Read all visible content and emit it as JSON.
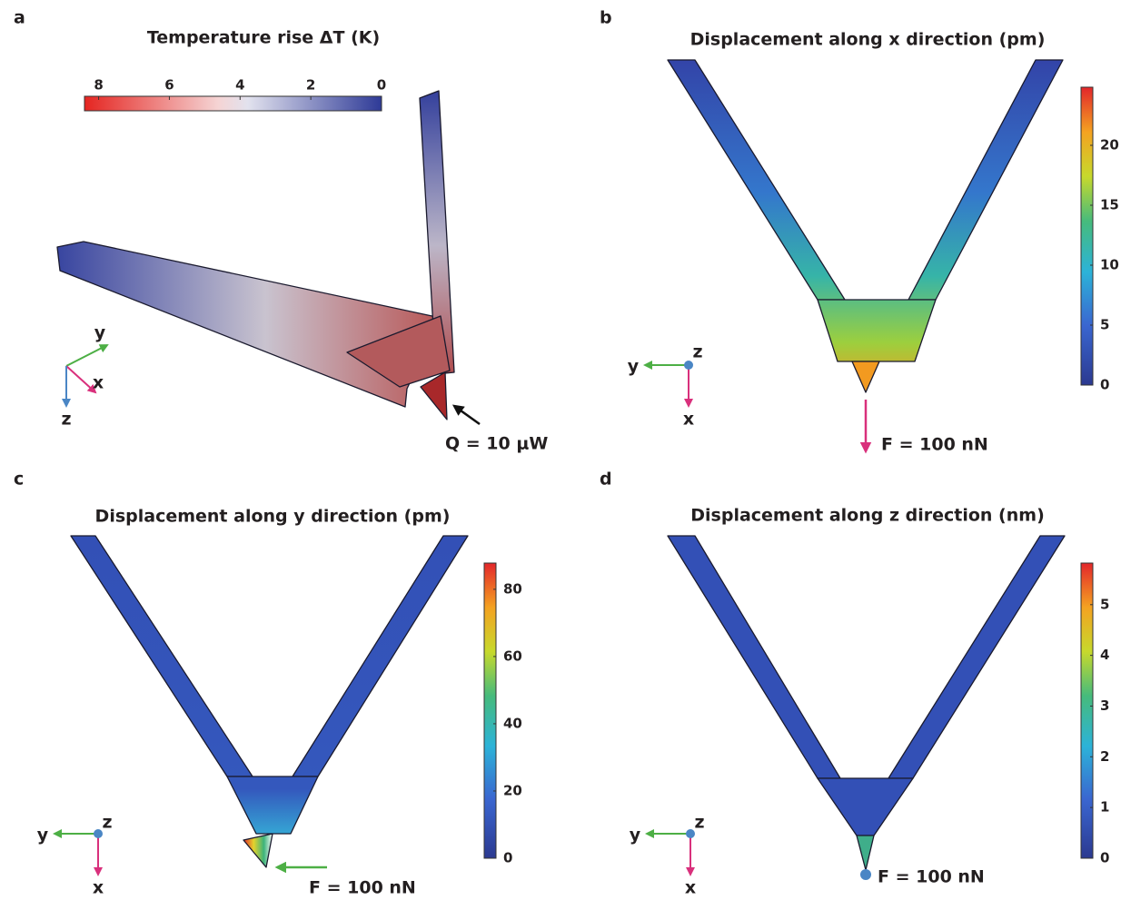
{
  "panels": [
    {
      "label": "a",
      "title": "Temperature rise ΔT (K)",
      "colorbar": {
        "orientation": "horizontal",
        "lim": [
          8.4,
          0
        ],
        "ticks": [
          8,
          6,
          4,
          2,
          0
        ]
      },
      "axes": [
        "y",
        "x",
        "z"
      ],
      "annotation": "Q = 10 μW"
    },
    {
      "label": "b",
      "title": "Displacement along x direction (pm)",
      "colorbar": {
        "orientation": "vertical",
        "lim": [
          0,
          24.85
        ],
        "ticks": [
          0,
          5,
          10,
          15,
          20
        ]
      },
      "axes": [
        "y",
        "z",
        "x"
      ],
      "annotation": "F = 100 nN"
    },
    {
      "label": "c",
      "title": "Displacement along y direction (pm)",
      "colorbar": {
        "orientation": "vertical",
        "lim": [
          0,
          87.8
        ],
        "ticks": [
          0,
          20,
          40,
          60,
          80
        ]
      },
      "axes": [
        "y",
        "z",
        "x"
      ],
      "annotation": "F = 100 nN"
    },
    {
      "label": "d",
      "title": "Displacement along z direction (nm)",
      "colorbar": {
        "orientation": "vertical",
        "lim": [
          0,
          5.82
        ],
        "ticks": [
          0,
          1,
          2,
          3,
          4,
          5
        ]
      },
      "axes": [
        "y",
        "z",
        "x"
      ],
      "annotation": "F = 100 nN"
    }
  ]
}
